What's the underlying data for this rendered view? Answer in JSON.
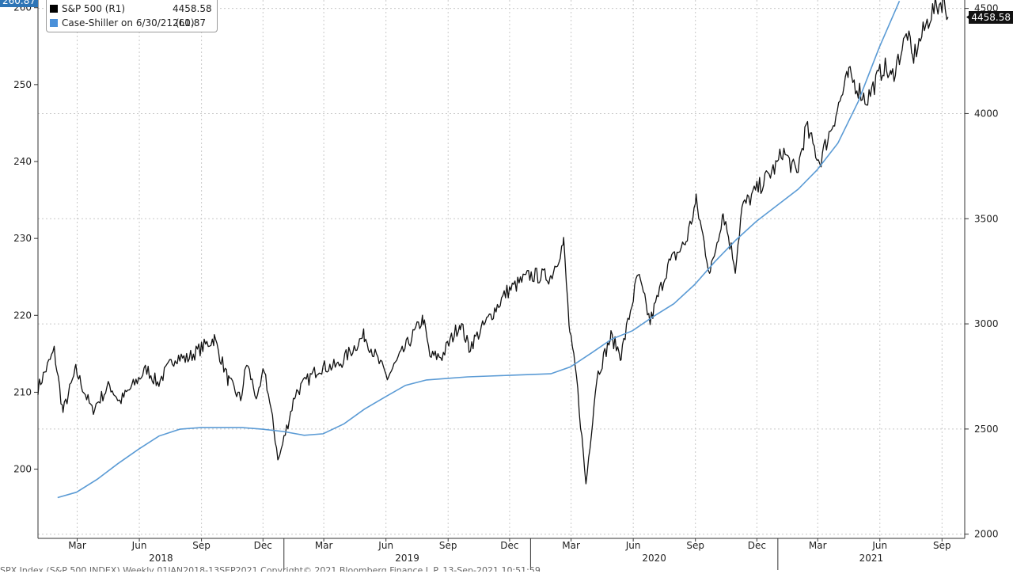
{
  "chart_data": {
    "type": "line",
    "title": "",
    "legend_position": "top-left",
    "x_range": [
      "2018-01-02",
      "2021-09-10"
    ],
    "month_ticks": [
      "Mar",
      "Jun",
      "Sep",
      "Dec",
      "Mar",
      "Jun",
      "Sep",
      "Dec",
      "Mar",
      "Jun",
      "Sep",
      "Dec",
      "Mar",
      "Jun",
      "Sep"
    ],
    "year_labels": [
      "2018",
      "2019",
      "2020",
      "2021"
    ],
    "left_axis": {
      "ylim": [
        191,
        261
      ],
      "ticks": [
        200,
        210,
        220,
        230,
        240,
        250,
        260
      ]
    },
    "right_axis": {
      "ylim": [
        1980,
        4540
      ],
      "ticks": [
        2000,
        2500,
        3000,
        3500,
        4000,
        4500
      ]
    },
    "grid": true,
    "series": [
      {
        "name": "S&P 500 (R1)",
        "axis": "right",
        "color": "#111111",
        "last_value": "4458.58",
        "points": [
          [
            "2018-01-02",
            2695
          ],
          [
            "2018-01-26",
            2872
          ],
          [
            "2018-02-08",
            2581
          ],
          [
            "2018-02-27",
            2780
          ],
          [
            "2018-03-23",
            2588
          ],
          [
            "2018-04-18",
            2708
          ],
          [
            "2018-05-03",
            2630
          ],
          [
            "2018-06-12",
            2786
          ],
          [
            "2018-06-28",
            2716
          ],
          [
            "2018-07-25",
            2846
          ],
          [
            "2018-08-10",
            2833
          ],
          [
            "2018-09-20",
            2930
          ],
          [
            "2018-10-11",
            2728
          ],
          [
            "2018-10-29",
            2641
          ],
          [
            "2018-11-07",
            2813
          ],
          [
            "2018-11-23",
            2633
          ],
          [
            "2018-12-03",
            2790
          ],
          [
            "2018-12-24",
            2351
          ],
          [
            "2019-01-18",
            2670
          ],
          [
            "2019-02-22",
            2792
          ],
          [
            "2019-03-22",
            2800
          ],
          [
            "2019-04-30",
            2945
          ],
          [
            "2019-06-03",
            2744
          ],
          [
            "2019-07-26",
            3025
          ],
          [
            "2019-08-05",
            2844
          ],
          [
            "2019-08-23",
            2847
          ],
          [
            "2019-09-19",
            3006
          ],
          [
            "2019-10-02",
            2887
          ],
          [
            "2019-11-27",
            3153
          ],
          [
            "2019-12-31",
            3231
          ],
          [
            "2020-01-31",
            3225
          ],
          [
            "2020-02-19",
            3386
          ],
          [
            "2020-02-28",
            2954
          ],
          [
            "2020-03-09",
            2746
          ],
          [
            "2020-03-23",
            2237
          ],
          [
            "2020-04-08",
            2749
          ],
          [
            "2020-04-29",
            2939
          ],
          [
            "2020-05-14",
            2852
          ],
          [
            "2020-06-08",
            3232
          ],
          [
            "2020-06-26",
            3009
          ],
          [
            "2020-07-22",
            3276
          ],
          [
            "2020-08-18",
            3390
          ],
          [
            "2020-09-02",
            3580
          ],
          [
            "2020-09-23",
            3237
          ],
          [
            "2020-10-12",
            3534
          ],
          [
            "2020-10-30",
            3270
          ],
          [
            "2020-11-09",
            3550
          ],
          [
            "2020-12-31",
            3756
          ],
          [
            "2021-01-08",
            3824
          ],
          [
            "2021-01-29",
            3714
          ],
          [
            "2021-02-12",
            3934
          ],
          [
            "2021-03-04",
            3768
          ],
          [
            "2021-04-16",
            4185
          ],
          [
            "2021-05-12",
            4063
          ],
          [
            "2021-06-07",
            4226
          ],
          [
            "2021-06-18",
            4166
          ],
          [
            "2021-07-12",
            4384
          ],
          [
            "2021-07-19",
            4258
          ],
          [
            "2021-08-16",
            4479
          ],
          [
            "2021-09-02",
            4537
          ],
          [
            "2021-09-10",
            4458.58
          ]
        ]
      },
      {
        "name": "Case-Shiller on 6/30/21 (L1)",
        "axis": "left",
        "color": "#5b9bd5",
        "last_value": "260.87",
        "points": [
          [
            "2018-01-31",
            196.3
          ],
          [
            "2018-02-28",
            197.0
          ],
          [
            "2018-03-31",
            198.7
          ],
          [
            "2018-04-30",
            200.7
          ],
          [
            "2018-05-31",
            202.6
          ],
          [
            "2018-06-30",
            204.3
          ],
          [
            "2018-07-31",
            205.2
          ],
          [
            "2018-08-31",
            205.4
          ],
          [
            "2018-09-30",
            205.4
          ],
          [
            "2018-10-31",
            205.4
          ],
          [
            "2018-11-30",
            205.2
          ],
          [
            "2018-12-31",
            204.9
          ],
          [
            "2019-01-31",
            204.4
          ],
          [
            "2019-02-28",
            204.6
          ],
          [
            "2019-03-31",
            205.9
          ],
          [
            "2019-04-30",
            207.8
          ],
          [
            "2019-05-31",
            209.4
          ],
          [
            "2019-06-30",
            210.9
          ],
          [
            "2019-07-31",
            211.6
          ],
          [
            "2019-08-31",
            211.8
          ],
          [
            "2019-09-30",
            212.0
          ],
          [
            "2019-10-31",
            212.1
          ],
          [
            "2019-11-30",
            212.2
          ],
          [
            "2019-12-31",
            212.3
          ],
          [
            "2020-01-31",
            212.4
          ],
          [
            "2020-02-29",
            213.3
          ],
          [
            "2020-03-31",
            215.1
          ],
          [
            "2020-04-30",
            216.9
          ],
          [
            "2020-05-31",
            218.0
          ],
          [
            "2020-06-30",
            219.8
          ],
          [
            "2020-07-31",
            221.5
          ],
          [
            "2020-08-31",
            224.0
          ],
          [
            "2020-09-30",
            227.0
          ],
          [
            "2020-10-31",
            229.8
          ],
          [
            "2020-11-30",
            232.2
          ],
          [
            "2020-12-31",
            234.3
          ],
          [
            "2021-01-31",
            236.4
          ],
          [
            "2021-02-28",
            238.9
          ],
          [
            "2021-03-31",
            242.4
          ],
          [
            "2021-04-30",
            247.8
          ],
          [
            "2021-05-31",
            254.8
          ],
          [
            "2021-06-30",
            260.87
          ]
        ]
      }
    ]
  },
  "labels": {
    "callout_left": "260.87",
    "callout_right": "4458.58",
    "footer": "SPX Index (S&P 500 INDEX)  Weekly 01JAN2018-13SEP2021                    Copyright© 2021 Bloomberg Finance L.P.                    13-Sep-2021 10:51:59"
  }
}
